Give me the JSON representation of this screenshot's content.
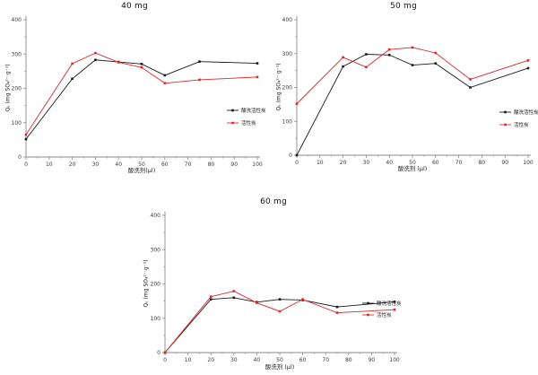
{
  "figure": {
    "background": "#ffffff",
    "axis_color": "#8a8a8a",
    "tick_label_color": "#3a3a3a",
    "legend_text_color": "#1a1a1a"
  },
  "chart_data": [
    {
      "type": "line",
      "title": "40 mg",
      "xlabel": "酸洗剂(μl)",
      "ylabel": "Qₑ (mg SO₄²⁻·g⁻¹)",
      "x": [
        0,
        20,
        30,
        40,
        50,
        60,
        75,
        100
      ],
      "series": [
        {
          "name": "酸洗活性炭",
          "color": "#1a1a1a",
          "values": [
            52,
            228,
            283,
            277,
            271,
            238,
            278,
            273
          ]
        },
        {
          "name": "活性炭",
          "color": "#d62b2b",
          "values": [
            65,
            272,
            303,
            276,
            261,
            215,
            225,
            233
          ]
        }
      ],
      "xlim": [
        0,
        100
      ],
      "ylim": [
        0,
        400
      ],
      "xticks": [
        0,
        10,
        20,
        30,
        40,
        50,
        60,
        70,
        80,
        90,
        100
      ],
      "yticks": [
        0,
        100,
        200,
        300,
        400
      ],
      "grid": false,
      "legend_position": "right-middle"
    },
    {
      "type": "line",
      "title": "50 mg",
      "xlabel": "酸洗剂 (μl)",
      "ylabel": "Qₑ (mg SO₄²⁻·g⁻¹)",
      "x": [
        0,
        20,
        30,
        40,
        50,
        60,
        75,
        100
      ],
      "series": [
        {
          "name": "酸洗活性炭",
          "color": "#1a1a1a",
          "values": [
            0,
            262,
            298,
            296,
            266,
            271,
            200,
            257
          ]
        },
        {
          "name": "活性炭",
          "color": "#d62b2b",
          "values": [
            152,
            289,
            260,
            312,
            318,
            302,
            224,
            280
          ]
        }
      ],
      "xlim": [
        0,
        100
      ],
      "ylim": [
        0,
        400
      ],
      "xticks": [
        0,
        10,
        20,
        30,
        40,
        50,
        60,
        70,
        80,
        90,
        100
      ],
      "yticks": [
        0,
        100,
        200,
        300,
        400
      ],
      "grid": false,
      "legend_position": "right-middle"
    },
    {
      "type": "line",
      "title": "60 mg",
      "xlabel": "酸洗剂 (μl)",
      "ylabel": "Qₑ (mg SO₄²⁻·g⁻¹)",
      "x": [
        0,
        20,
        30,
        40,
        50,
        60,
        75,
        100
      ],
      "series": [
        {
          "name": "酸洗活性炭",
          "color": "#1a1a1a",
          "values": [
            0,
            155,
            160,
            147,
            155,
            153,
            133,
            148
          ]
        },
        {
          "name": "活性炭",
          "color": "#d62b2b",
          "values": [
            0,
            163,
            179,
            145,
            120,
            155,
            116,
            125
          ]
        }
      ],
      "xlim": [
        0,
        100
      ],
      "ylim": [
        0,
        400
      ],
      "xticks": [
        0,
        10,
        20,
        30,
        40,
        50,
        60,
        70,
        80,
        90,
        100
      ],
      "yticks": [
        0,
        100,
        200,
        300,
        400
      ],
      "grid": false,
      "legend_position": "right-middle"
    }
  ]
}
